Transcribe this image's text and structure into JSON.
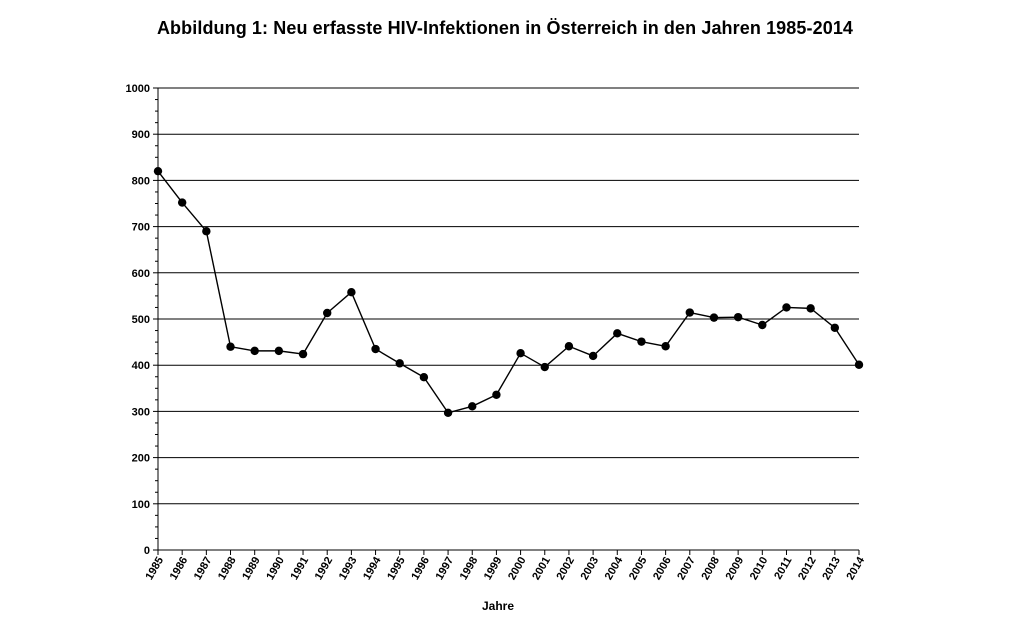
{
  "chart_data": {
    "type": "line",
    "title": "Abbildung 1: Neu erfasste HIV-Infektionen in Österreich in den Jahren 1985-2014",
    "xlabel": "Jahre",
    "ylabel": "",
    "ylim": [
      0,
      1000
    ],
    "yticks": [
      "0",
      "100",
      "200",
      "300",
      "400",
      "500",
      "600",
      "700",
      "800",
      "900",
      "1000"
    ],
    "grid": "horizontal",
    "categories": [
      "1985",
      "1986",
      "1987",
      "1988",
      "1989",
      "1990",
      "1991",
      "1992",
      "1993",
      "1994",
      "1995",
      "1996",
      "1997",
      "1998",
      "1999",
      "2000",
      "2001",
      "2002",
      "2003",
      "2004",
      "2005",
      "2006",
      "2007",
      "2008",
      "2009",
      "2010",
      "2011",
      "2012",
      "2013",
      "2014"
    ],
    "series": [
      {
        "values": [
          820,
          752,
          690,
          440,
          431,
          431,
          424,
          513,
          558,
          435,
          404,
          374,
          297,
          311,
          336,
          426,
          396,
          441,
          420,
          469,
          451,
          441,
          514,
          503,
          504,
          487,
          525,
          523,
          481,
          401
        ],
        "color": "#000000"
      }
    ]
  }
}
